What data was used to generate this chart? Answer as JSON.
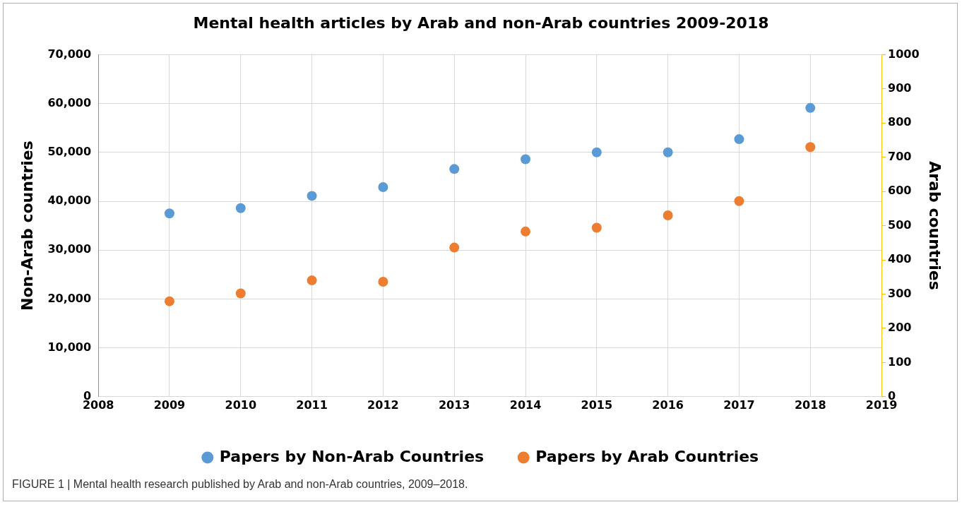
{
  "chart_data": {
    "type": "scatter",
    "title": "Mental health articles by Arab and non-Arab countries 2009-2018",
    "ylabel": "Non-Arab countries",
    "y2label": "Arab countries",
    "x": [
      2009,
      2010,
      2011,
      2012,
      2013,
      2014,
      2015,
      2016,
      2017,
      2018
    ],
    "series": [
      {
        "name": "Papers by Non-Arab Countries",
        "color": "#5b9bd5",
        "values": [
          37500,
          38600,
          41100,
          42900,
          46600,
          48600,
          50000,
          50000,
          52700,
          59100
        ]
      },
      {
        "name": "Papers by Arab Countries",
        "color": "#ed7d31",
        "axis": "y2",
        "values": [
          279,
          302,
          340,
          336,
          436,
          483,
          494,
          530,
          572,
          730
        ]
      }
    ],
    "xlim": [
      2008,
      2019
    ],
    "xticks": [
      2008,
      2009,
      2010,
      2011,
      2012,
      2013,
      2014,
      2015,
      2016,
      2017,
      2018,
      2019
    ],
    "ylim": [
      0,
      70000
    ],
    "yticks": [
      {
        "value": 0,
        "label": "0"
      },
      {
        "value": 10000,
        "label": "10,000"
      },
      {
        "value": 20000,
        "label": "20,000"
      },
      {
        "value": 30000,
        "label": "30,000"
      },
      {
        "value": 40000,
        "label": "40,000"
      },
      {
        "value": 50000,
        "label": "50,000"
      },
      {
        "value": 60000,
        "label": "60,000"
      },
      {
        "value": 70000,
        "label": "70,000"
      }
    ],
    "y2lim": [
      0,
      1000
    ],
    "y2ticks": [
      0,
      100,
      200,
      300,
      400,
      500,
      600,
      700,
      800,
      900,
      1000
    ],
    "grid": true,
    "legend": "bottom",
    "marker": "circle",
    "annotations": [
      "FIGURE 1 | Mental health research published by Arab and non-Arab countries, 2009–2018."
    ]
  }
}
